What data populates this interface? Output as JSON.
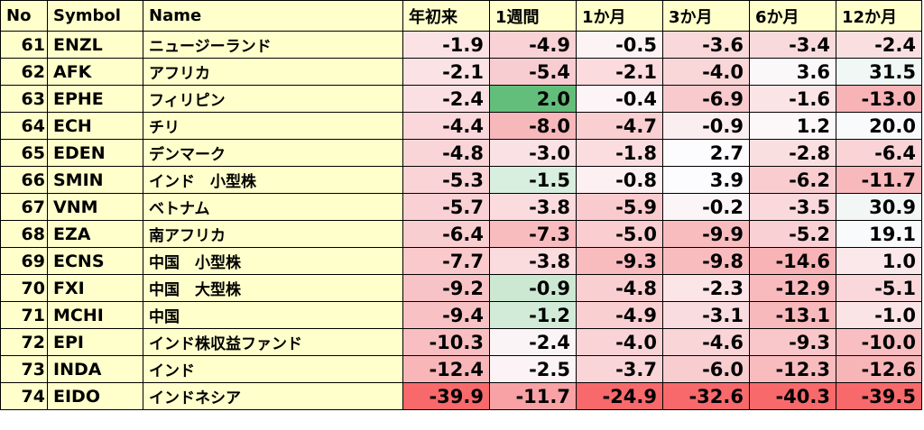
{
  "headers": [
    "No",
    "Symbol",
    "Name",
    "年初来",
    "1週間",
    "1か月",
    "3か月",
    "6か月",
    "12か月"
  ],
  "rows": [
    {
      "no": "61",
      "symbol": "ENZL",
      "name": "ニュージーランド",
      "values": [
        "-1.9",
        "-4.9",
        "-0.5",
        "-3.6",
        "-3.4",
        "-2.4"
      ],
      "colors": [
        "#fbe3e5",
        "#f9d2d5",
        "#fcf3f5",
        "#f9d8da",
        "#f9dadc",
        "#fadfe1"
      ]
    },
    {
      "no": "62",
      "symbol": "AFK",
      "name": "アフリカ",
      "values": [
        "-2.1",
        "-5.4",
        "-2.1",
        "-4.0",
        "3.6",
        "31.5"
      ],
      "colors": [
        "#fbe2e4",
        "#f8cdd1",
        "#fbdbdd",
        "#f9d6d8",
        "#fbf8fa",
        "#f1f7f4"
      ]
    },
    {
      "no": "63",
      "symbol": "EPHE",
      "name": "フィリピン",
      "values": [
        "-2.4",
        "2.0",
        "-0.4",
        "-6.9",
        "-1.6",
        "-13.0"
      ],
      "colors": [
        "#fae0e2",
        "#63be7b",
        "#fcf4f6",
        "#f8cacd",
        "#fbe4e6",
        "#f8b3b6"
      ]
    },
    {
      "no": "64",
      "symbol": "ECH",
      "name": "チリ",
      "values": [
        "-4.4",
        "-8.0",
        "-4.7",
        "-0.9",
        "1.2",
        "20.0"
      ],
      "colors": [
        "#fad7da",
        "#f7b8bc",
        "#facfd2",
        "#fbeef0",
        "#fcf8fa",
        "#f8fafb"
      ]
    },
    {
      "no": "65",
      "symbol": "EDEN",
      "name": "デンマーク",
      "values": [
        "-4.8",
        "-3.0",
        "-1.8",
        "2.7",
        "-2.8",
        "-6.4"
      ],
      "colors": [
        "#fad5d8",
        "#fae1e3",
        "#fbdddf",
        "#fcfcff",
        "#fadfe1",
        "#fad3d6"
      ]
    },
    {
      "no": "66",
      "symbol": "SMIN",
      "name": "インド　小型株",
      "values": [
        "-5.3",
        "-1.5",
        "-0.8",
        "3.9",
        "-6.2",
        "-11.7"
      ],
      "colors": [
        "#f9d3d6",
        "#d8eedf",
        "#fcf0f2",
        "#fcfcff",
        "#f9cdd0",
        "#f8b9bd"
      ]
    },
    {
      "no": "67",
      "symbol": "VNM",
      "name": "ベトナム",
      "values": [
        "-5.7",
        "-3.8",
        "-5.9",
        "-0.2",
        "-3.5",
        "30.9"
      ],
      "colors": [
        "#f9d1d4",
        "#fadbde",
        "#facbce",
        "#fbf5f7",
        "#fad9dc",
        "#f2f7f5"
      ]
    },
    {
      "no": "68",
      "symbol": "EZA",
      "name": "南アフリカ",
      "values": [
        "-6.4",
        "-7.3",
        "-5.0",
        "-9.9",
        "-5.2",
        "19.1"
      ],
      "colors": [
        "#f9ced1",
        "#f8bcbf",
        "#facdd0",
        "#f8bcbf",
        "#f9d1d4",
        "#f9fafc"
      ]
    },
    {
      "no": "69",
      "symbol": "ECNS",
      "name": "中国　小型株",
      "values": [
        "-7.7",
        "-3.8",
        "-9.3",
        "-9.8",
        "-14.6",
        "1.0"
      ],
      "colors": [
        "#f9c9cc",
        "#fadbde",
        "#f8bcbf",
        "#f8bcbf",
        "#f8b3b6",
        "#fae8ea"
      ]
    },
    {
      "no": "70",
      "symbol": "FXI",
      "name": "中国　大型株",
      "values": [
        "-9.2",
        "-0.9",
        "-4.8",
        "-2.3",
        "-12.9",
        "-5.1"
      ],
      "colors": [
        "#f8c3c6",
        "#cce8d3",
        "#facfd2",
        "#fbe5e7",
        "#f8babd",
        "#fad7da"
      ]
    },
    {
      "no": "71",
      "symbol": "MCHI",
      "name": "中国",
      "values": [
        "-9.4",
        "-1.2",
        "-4.9",
        "-3.1",
        "-13.1",
        "-1.0"
      ],
      "colors": [
        "#f8c2c5",
        "#d2ebd9",
        "#facfd2",
        "#f9dcdf",
        "#f8b9bc",
        "#fae4e6"
      ]
    },
    {
      "no": "72",
      "symbol": "EPI",
      "name": "インド株収益ファンド",
      "values": [
        "-10.3",
        "-2.4",
        "-4.0",
        "-4.6",
        "-9.3",
        "-10.0"
      ],
      "colors": [
        "#f8bec1",
        "#fbf4f6",
        "#f9d3d6",
        "#f9d5d8",
        "#f9c6c9",
        "#f8bec1"
      ]
    },
    {
      "no": "73",
      "symbol": "INDA",
      "name": "インド",
      "values": [
        "-12.4",
        "-2.5",
        "-3.7",
        "-6.0",
        "-12.3",
        "-12.6"
      ],
      "colors": [
        "#f8b6b9",
        "#fbf3f5",
        "#fad5d8",
        "#f8cdd0",
        "#f8bcbf",
        "#f8b5b8"
      ]
    },
    {
      "no": "74",
      "symbol": "EIDO",
      "name": "インドネシア",
      "values": [
        "-39.9",
        "-11.7",
        "-24.9",
        "-32.6",
        "-40.3",
        "-39.5"
      ],
      "colors": [
        "#f8696b",
        "#f8a2a5",
        "#f8696b",
        "#f8696b",
        "#f8696b",
        "#f8696b"
      ]
    }
  ]
}
